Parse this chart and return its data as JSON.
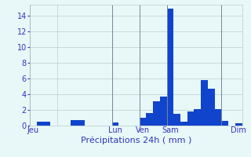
{
  "title": "Précipitations 24h ( mm )",
  "bar_color": "#1144cc",
  "background_color": "#e8f8f8",
  "grid_color": "#bbcccc",
  "text_color": "#3333bb",
  "ylim": [
    0,
    15.5
  ],
  "yticks": [
    0,
    2,
    4,
    6,
    8,
    10,
    12,
    14
  ],
  "values": [
    0,
    0.5,
    0.5,
    0,
    0,
    0,
    0.7,
    0.7,
    0,
    0,
    0,
    0,
    0.4,
    0,
    0,
    0,
    1.0,
    1.6,
    3.1,
    3.7,
    15.0,
    1.5,
    0.5,
    1.8,
    2.1,
    5.8,
    4.7,
    2.1,
    0.6,
    0,
    0.3
  ],
  "day_labels": [
    "Jeu",
    "Lun",
    "Ven",
    "Sam",
    "Dim"
  ],
  "day_label_bar_indices": [
    0,
    12,
    16,
    20,
    30
  ],
  "separator_positions": [
    4,
    12,
    16,
    20,
    28
  ],
  "xlabel_fontsize": 8,
  "tick_fontsize": 7
}
